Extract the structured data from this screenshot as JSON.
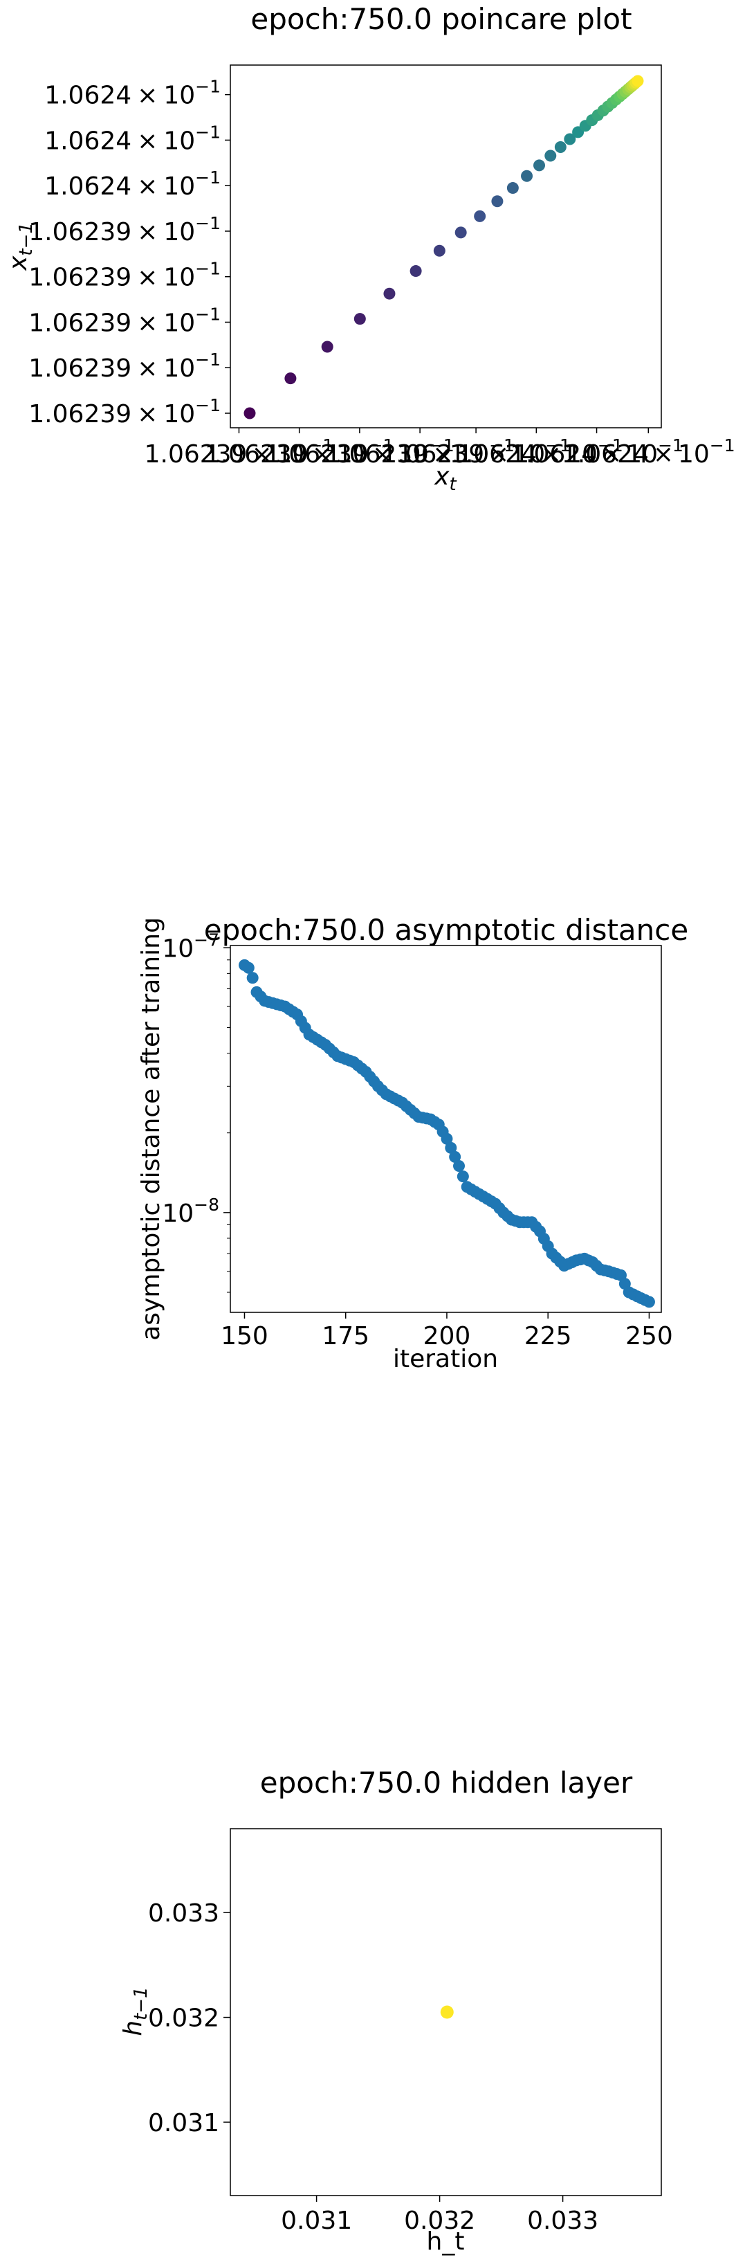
{
  "chart_data": [
    {
      "type": "scatter",
      "title": "epoch:750.0 poincare plot",
      "xlabel_base": "x",
      "xlabel_sub": "t",
      "ylabel_base": "x",
      "ylabel_sub": "t−1",
      "xlim": [
        0.0,
        1.0
      ],
      "ylim": [
        0.0,
        1.0
      ],
      "colormap": [
        "#440154",
        "#3b528b",
        "#21918c",
        "#5ec962",
        "#fde725"
      ],
      "xticks": [
        {
          "pos": 0.02,
          "label": "1.06239"
        },
        {
          "pos": 0.16,
          "label": "1.06239"
        },
        {
          "pos": 0.3,
          "label": "1.06239"
        },
        {
          "pos": 0.44,
          "label": "1.06239"
        },
        {
          "pos": 0.57,
          "label": "1.06239"
        },
        {
          "pos": 0.71,
          "label": "1.0624"
        },
        {
          "pos": 0.85,
          "label": "1.0624"
        },
        {
          "pos": 0.97,
          "label": "1.0624"
        }
      ],
      "x_tick_times": "×",
      "x_tick_power": "10",
      "x_tick_exp": "−1",
      "yticks": [
        {
          "pos": 0.0,
          "label": "1.06239",
          "times": "×",
          "power": "10",
          "exp": "−1"
        },
        {
          "pos": 0.137,
          "label": "1.06239",
          "times": "×",
          "power": "10",
          "exp": "−1"
        },
        {
          "pos": 0.274,
          "label": "1.06239",
          "times": "×",
          "power": "10",
          "exp": "−1"
        },
        {
          "pos": 0.411,
          "label": "1.06239",
          "times": "×",
          "power": "10",
          "exp": "−1"
        },
        {
          "pos": 0.548,
          "label": "1.06239",
          "times": "×",
          "power": "10",
          "exp": "−1"
        },
        {
          "pos": 0.685,
          "label": "1.0624",
          "times": "×",
          "power": "10",
          "exp": "−1"
        },
        {
          "pos": 0.822,
          "label": "1.0624",
          "times": "×",
          "power": "10",
          "exp": "−1"
        },
        {
          "pos": 0.959,
          "label": "1.0624",
          "times": "×",
          "power": "10",
          "exp": "−1"
        }
      ],
      "points": [
        [
          0.0,
          0.0
        ],
        [
          0.105,
          0.105
        ],
        [
          0.2,
          0.2
        ],
        [
          0.284,
          0.284
        ],
        [
          0.36,
          0.36
        ],
        [
          0.428,
          0.428
        ],
        [
          0.489,
          0.489
        ],
        [
          0.544,
          0.544
        ],
        [
          0.593,
          0.593
        ],
        [
          0.638,
          0.638
        ],
        [
          0.678,
          0.678
        ],
        [
          0.714,
          0.714
        ],
        [
          0.746,
          0.746
        ],
        [
          0.775,
          0.775
        ],
        [
          0.801,
          0.801
        ],
        [
          0.825,
          0.825
        ],
        [
          0.846,
          0.846
        ],
        [
          0.865,
          0.865
        ],
        [
          0.882,
          0.882
        ],
        [
          0.897,
          0.897
        ],
        [
          0.911,
          0.911
        ],
        [
          0.923,
          0.923
        ],
        [
          0.934,
          0.934
        ],
        [
          0.944,
          0.944
        ],
        [
          0.953,
          0.953
        ],
        [
          0.961,
          0.961
        ],
        [
          0.968,
          0.968
        ],
        [
          0.975,
          0.975
        ],
        [
          0.981,
          0.981
        ],
        [
          0.986,
          0.986
        ],
        [
          0.991,
          0.991
        ],
        [
          0.995,
          0.995
        ],
        [
          1.0,
          1.0
        ]
      ]
    },
    {
      "type": "scatter",
      "title": "epoch:750.0 asymptotic distance",
      "xlabel": "iteration",
      "ylabel": "asymptotic distance after training",
      "yscale": "log",
      "xlim": [
        146.5,
        253
      ],
      "ylim": [
        4.2e-09,
        1.02e-07
      ],
      "color": "#1f77b4",
      "xticks": [
        150,
        175,
        200,
        225,
        250
      ],
      "yticks": [
        {
          "value": 1e-08,
          "base": "10",
          "exp": "−8"
        },
        {
          "value": 1e-07,
          "base": "10",
          "exp": "−7"
        }
      ],
      "anchors": [
        [
          150,
          8.6e-08
        ],
        [
          151,
          8.4e-08
        ],
        [
          152,
          7.7e-08
        ],
        [
          153,
          6.8e-08
        ],
        [
          155,
          6.3e-08
        ],
        [
          160,
          6e-08
        ],
        [
          163,
          5.6e-08
        ],
        [
          166,
          4.7e-08
        ],
        [
          170,
          4.3e-08
        ],
        [
          173,
          3.9e-08
        ],
        [
          177,
          3.7e-08
        ],
        [
          180,
          3.4e-08
        ],
        [
          183,
          3e-08
        ],
        [
          185,
          2.8e-08
        ],
        [
          189,
          2.6e-08
        ],
        [
          193,
          2.3e-08
        ],
        [
          196,
          2.25e-08
        ],
        [
          198,
          2.15e-08
        ],
        [
          200,
          1.9e-08
        ],
        [
          203,
          1.5e-08
        ],
        [
          205,
          1.25e-08
        ],
        [
          209,
          1.15e-08
        ],
        [
          212,
          1.08e-08
        ],
        [
          214,
          1e-08
        ],
        [
          216,
          9.4e-09
        ],
        [
          218,
          9.2e-09
        ],
        [
          221,
          9.2e-09
        ],
        [
          223,
          8.5e-09
        ],
        [
          226,
          7e-09
        ],
        [
          229,
          6.3e-09
        ],
        [
          232,
          6.6e-09
        ],
        [
          234,
          6.7e-09
        ],
        [
          236,
          6.5e-09
        ],
        [
          238,
          6.1e-09
        ],
        [
          240,
          6e-09
        ],
        [
          243,
          5.8e-09
        ],
        [
          245,
          5e-09
        ],
        [
          248,
          4.75e-09
        ],
        [
          250,
          4.6e-09
        ]
      ]
    },
    {
      "type": "scatter",
      "title": "epoch:750.0 hidden layer",
      "xlabel": "h_t",
      "ylabel_base": "h",
      "ylabel_sub": "t−1",
      "xlim": [
        0.0303,
        0.0338
      ],
      "ylim": [
        0.0303,
        0.0338
      ],
      "color": "#fde725",
      "xticks": [
        {
          "value": 0.031,
          "label": "0.031"
        },
        {
          "value": 0.032,
          "label": "0.032"
        },
        {
          "value": 0.033,
          "label": "0.033"
        }
      ],
      "yticks": [
        {
          "value": 0.031,
          "label": "0.031"
        },
        {
          "value": 0.032,
          "label": "0.032"
        },
        {
          "value": 0.033,
          "label": "0.033"
        }
      ],
      "points": [
        [
          0.03206,
          0.03205
        ]
      ]
    }
  ]
}
